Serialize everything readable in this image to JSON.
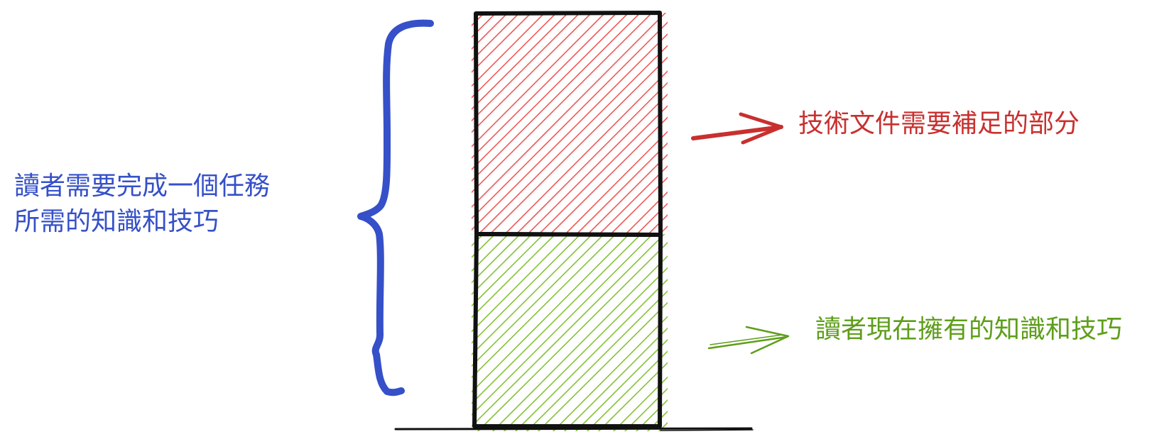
{
  "labels": {
    "total_required": {
      "line1": "讀者需要完成一個任務",
      "line2": "所需的知識和技巧"
    },
    "gap": "技術文件需要補足的部分",
    "existing": "讀者現在擁有的知識和技巧"
  },
  "colors": {
    "total_required": "#3550C8",
    "gap": "#C8302F",
    "existing": "#5E9E1A",
    "gap_hatch": "#EE5A5A",
    "existing_hatch": "#86C23A",
    "outline": "#111111"
  }
}
